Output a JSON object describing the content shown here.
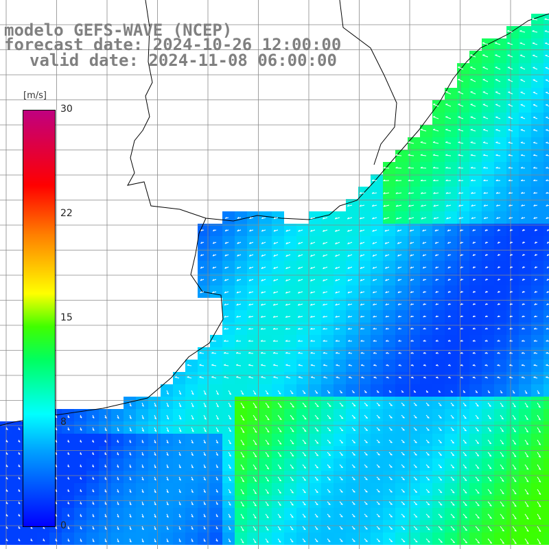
{
  "header": {
    "line1": "modelo GEFS-WAVE (NCEP)",
    "line2": "forecast date: 2024-10-26 12:00:00",
    "line3": "valid date: 2024-11-08 06:00:00"
  },
  "colorbar": {
    "unit": "[m/s]",
    "ticks": [
      "30",
      "22",
      "15",
      "8",
      "0"
    ],
    "stops": [
      "#0000ff",
      "#00a0ff",
      "#00ffff",
      "#00ff60",
      "#40ff00",
      "#ffff00",
      "#ff8000",
      "#ff0000",
      "#c00080"
    ]
  },
  "legend": {
    "ocean_color_low": "#1060ff",
    "ocean_color_high": "#b0ff00",
    "land_color": "#ffffff"
  }
}
